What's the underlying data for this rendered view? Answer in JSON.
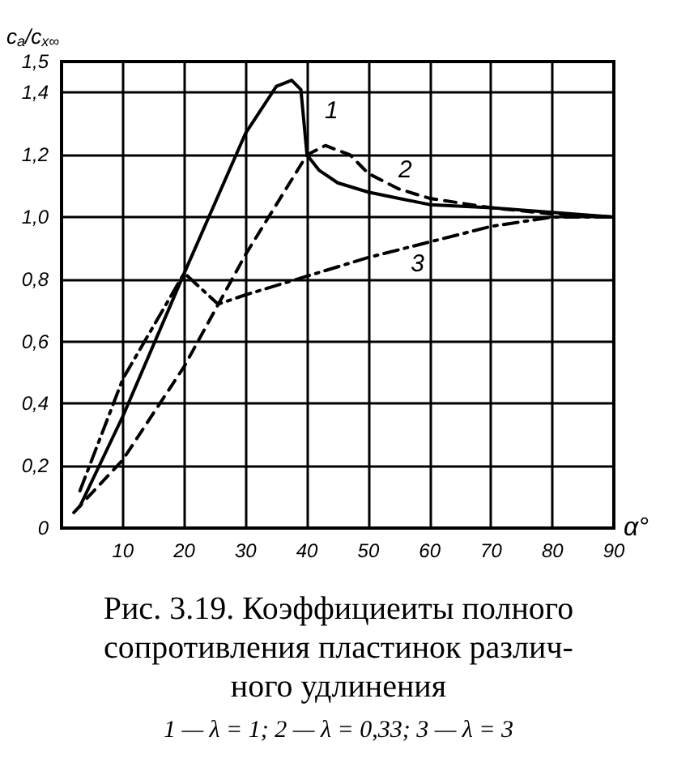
{
  "chart_data": {
    "type": "line",
    "xlabel": "α°",
    "ylabel": "c$_{a}$/c$_{x∞}$",
    "xlim": [
      0,
      90
    ],
    "xticks": [
      10,
      20,
      30,
      40,
      50,
      60,
      70,
      80,
      90
    ],
    "ylim": [
      0,
      1.5
    ],
    "yticks": [
      0,
      {
        "value": 0.2,
        "label": "0,2"
      },
      {
        "value": 0.4,
        "label": "0,4"
      },
      {
        "value": 0.6,
        "label": "0,6"
      },
      {
        "value": 0.8,
        "label": "0,8"
      },
      {
        "value": 1.0,
        "label": "1,0"
      },
      {
        "value": 1.2,
        "label": "1,2"
      },
      {
        "value": 1.4,
        "label": "1,4"
      },
      {
        "value": 1.5,
        "label": "1,5"
      }
    ],
    "grid": true,
    "marker": "none",
    "series": [
      {
        "color": "#000000",
        "line_style": "solid",
        "x": [
          3,
          10,
          20,
          30,
          35,
          37.5,
          39,
          40,
          42,
          45,
          50,
          55,
          60,
          70,
          80,
          90
        ],
        "values": [
          0.07,
          0.36,
          0.82,
          1.27,
          1.42,
          1.44,
          1.41,
          1.2,
          1.15,
          1.11,
          1.08,
          1.06,
          1.04,
          1.03,
          1.015,
          1.0
        ]
      },
      {
        "color": "#000000",
        "line_style": "dashed",
        "x": [
          2,
          10,
          20,
          30,
          40,
          43,
          47,
          50,
          55,
          60,
          70,
          80,
          90
        ],
        "values": [
          0.05,
          0.22,
          0.52,
          0.88,
          1.2,
          1.23,
          1.2,
          1.14,
          1.09,
          1.06,
          1.03,
          1.01,
          1.0
        ]
      },
      {
        "color": "#000000",
        "line_style": "dashdot",
        "x": [
          3,
          10,
          20,
          25.5,
          30,
          40,
          50,
          60,
          70,
          80,
          90
        ],
        "values": [
          0.12,
          0.48,
          0.82,
          0.72,
          0.75,
          0.81,
          0.87,
          0.92,
          0.97,
          1.0,
          1.0
        ]
      }
    ],
    "annotations": [
      {
        "text": "1",
        "x": 44,
        "y": 1.34
      },
      {
        "text": "2",
        "x": 56,
        "y": 1.15
      },
      {
        "text": "3",
        "x": 58,
        "y": 0.85
      },
      "Рис. 3.19. Коэффициеиты полного\nсопротивления пластинок различ-\nного удлинения",
      "1 — λ = 1;  2 — λ = 0,33;  3 — λ = 3"
    ]
  }
}
